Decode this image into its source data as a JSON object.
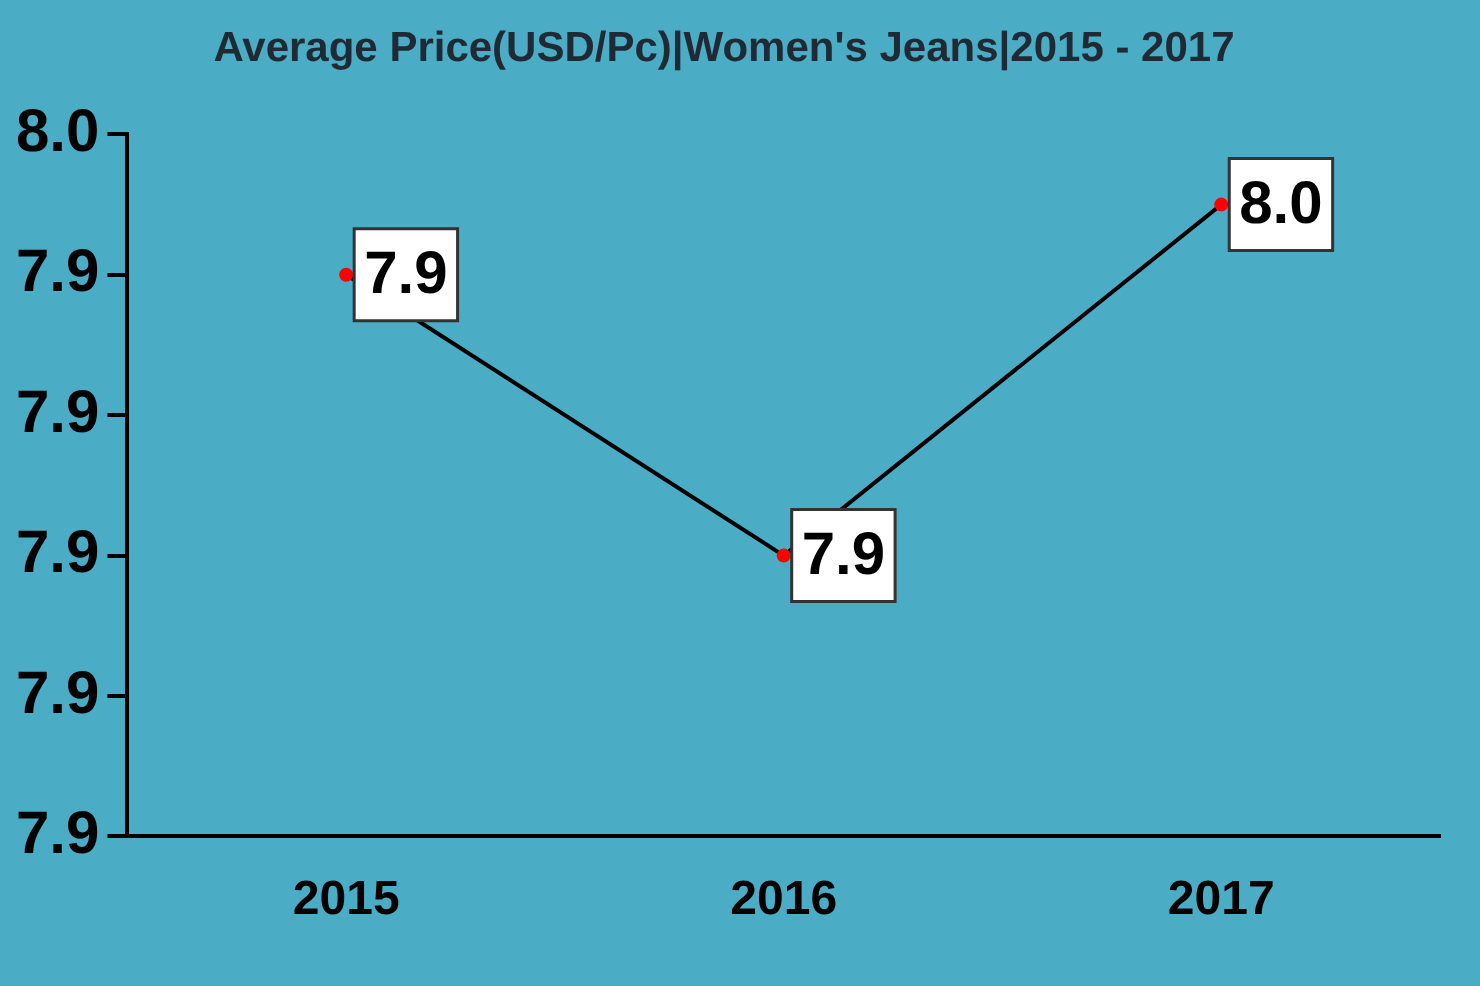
{
  "chart_data": {
    "type": "line",
    "title": "Average Price(USD/Pc)|Women's Jeans|2015 - 2017",
    "categories": [
      "2015",
      "2016",
      "2017"
    ],
    "series": [
      {
        "color": "#000000",
        "colors": [
          "#ff0000",
          "#ff0000",
          "#ff0000"
        ],
        "values": [
          7.94,
          7.9,
          7.95
        ],
        "value_labels": [
          "7.9",
          "7.9",
          "8.0"
        ]
      }
    ],
    "ylim": [
      7.86,
      7.96
    ],
    "yticks": [
      {
        "value": 7.86,
        "label": "7.9"
      },
      {
        "value": 7.88,
        "label": "7.9"
      },
      {
        "value": 7.9,
        "label": "7.9"
      },
      {
        "value": 7.92,
        "label": "7.9"
      },
      {
        "value": 7.94,
        "label": "7.9"
      },
      {
        "value": 7.96,
        "label": "8.0"
      }
    ],
    "grid": false,
    "legend": false,
    "marker": "circle",
    "line_style": "solid"
  }
}
